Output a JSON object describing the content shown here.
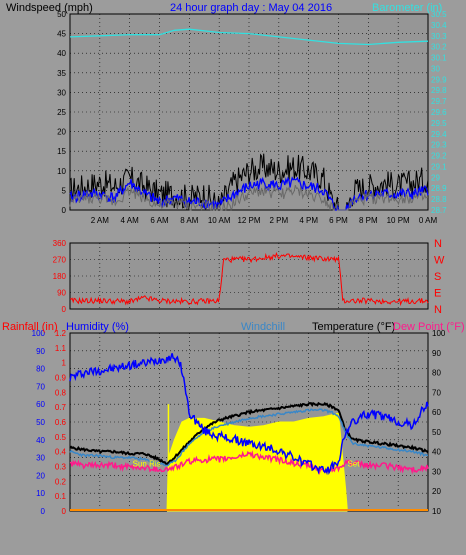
{
  "colors": {
    "background": "#9c9c9c",
    "panel": "#969696",
    "black": "#000000",
    "cyan": "#33e0e0",
    "blue": "#0000ff",
    "gray": "#6a6a6a",
    "red": "#ff0000",
    "pink": "#ff1a8c",
    "steelblue": "#3a87c7",
    "yellow": "#ffff00",
    "orange": "#ff8c00"
  },
  "chart_data": [
    {
      "type": "line",
      "title": "24 hour graph day : May 04 2016",
      "ylabel": "Windspeed (mph)",
      "y2label": "Barometer (in)",
      "x_ticks": [
        "2 AM",
        "4 AM",
        "6 AM",
        "8 AM",
        "10 AM",
        "12 PM",
        "2 PM",
        "4 PM",
        "6 PM",
        "8 PM",
        "10 PM",
        "0 AM"
      ],
      "xlim": [
        0,
        24
      ],
      "ylim": [
        0,
        50
      ],
      "y_ticks": [
        "0",
        "5",
        "10",
        "15",
        "20",
        "25",
        "30",
        "35",
        "40",
        "45",
        "50"
      ],
      "y2lim": [
        28.7,
        30.5
      ],
      "y2_ticks": [
        "28.7",
        "28.8",
        "28.9",
        "29",
        "29.1",
        "29.2",
        "29.3",
        "29.4",
        "29.5",
        "29.6",
        "29.7",
        "29.8",
        "29.9",
        "30",
        "30.1",
        "30.2",
        "30.3",
        "30.4",
        "30.5"
      ],
      "grid": true,
      "series": [
        {
          "key": "gust",
          "color": "#000000",
          "x": [
            0,
            1,
            2,
            3,
            4,
            5,
            6,
            7,
            8,
            9,
            10,
            11,
            12,
            13,
            14,
            15,
            16,
            17,
            17.5,
            18,
            18.5,
            19,
            20,
            21,
            22,
            23,
            24
          ],
          "y": [
            5,
            6,
            7,
            6,
            8,
            6,
            4,
            4,
            3,
            4,
            1,
            7,
            10,
            11,
            10,
            11,
            10,
            8,
            3,
            0,
            0,
            5,
            6,
            7,
            6,
            7,
            8
          ]
        },
        {
          "key": "wind",
          "color": "#0000ff",
          "x": [
            0,
            1,
            2,
            3,
            4,
            5,
            6,
            7,
            8,
            9,
            10,
            11,
            12,
            13,
            14,
            15,
            16,
            17,
            17.5,
            18,
            18.5,
            19,
            20,
            21,
            22,
            23,
            24
          ],
          "y": [
            3,
            4,
            4,
            3,
            7,
            4,
            2,
            3,
            2,
            2,
            1,
            4,
            6,
            7,
            6,
            7,
            6,
            5,
            2,
            0,
            0,
            3,
            4,
            4,
            4,
            4,
            5
          ]
        },
        {
          "key": "avg",
          "color": "#6a6a6a",
          "x": [
            0,
            1,
            2,
            3,
            4,
            5,
            6,
            7,
            8,
            9,
            10,
            11,
            12,
            13,
            14,
            15,
            16,
            17,
            17.5,
            18,
            18.5,
            19,
            20,
            21,
            22,
            23,
            24
          ],
          "y": [
            2,
            3,
            3,
            2,
            5,
            3,
            1,
            2,
            1,
            1,
            0,
            2,
            4,
            5,
            4,
            5,
            4,
            3,
            1,
            0,
            0,
            2,
            3,
            3,
            3,
            3,
            3
          ]
        },
        {
          "key": "barometer",
          "axis": "y2",
          "color": "#33e0e0",
          "x": [
            0,
            2,
            4,
            6,
            7,
            8,
            10,
            12,
            14,
            16,
            18,
            20,
            22,
            24
          ],
          "y": [
            30.29,
            30.3,
            30.31,
            30.31,
            30.35,
            30.36,
            30.33,
            30.32,
            30.29,
            30.26,
            30.23,
            30.22,
            30.24,
            30.25
          ]
        }
      ]
    },
    {
      "type": "scatter",
      "ylabel": "Wind direction",
      "xlim": [
        0,
        24
      ],
      "ylim": [
        0,
        360
      ],
      "y_ticks": [
        "0",
        "90",
        "180",
        "270",
        "360"
      ],
      "compass_labels": [
        "N",
        "W",
        "S",
        "E",
        "N"
      ],
      "grid": true,
      "series": [
        {
          "key": "direction",
          "color": "#ff0000",
          "x": [
            0,
            2,
            4,
            5,
            6,
            8,
            10,
            10.3,
            12,
            14,
            16,
            18,
            18.3,
            20,
            22,
            24
          ],
          "y": [
            45,
            45,
            40,
            60,
            45,
            40,
            45,
            270,
            270,
            290,
            280,
            270,
            45,
            45,
            40,
            45
          ]
        }
      ]
    },
    {
      "type": "line",
      "ylabel": "Rainfall (in)",
      "y2label": "Humidity (%)",
      "y3label": "Temperature (°F)",
      "legend": [
        "Windchill",
        "Temperature (°F)",
        "Dew Point (°F)"
      ],
      "xlim": [
        0,
        24
      ],
      "rain_lim": [
        0,
        1.2
      ],
      "rain_ticks": [
        "0",
        "0.1",
        "0.2",
        "0.3",
        "0.4",
        "0.5",
        "0.6",
        "0.7",
        "0.8",
        "0.9",
        "1",
        "1.1",
        "1.2"
      ],
      "humidity_lim": [
        0,
        100
      ],
      "humidity_ticks": [
        "0",
        "10",
        "20",
        "30",
        "40",
        "50",
        "60",
        "70",
        "80",
        "90",
        "100"
      ],
      "temp_lim": [
        10,
        100
      ],
      "temp_ticks": [
        "10",
        "20",
        "30",
        "40",
        "50",
        "60",
        "70",
        "80",
        "90",
        "100"
      ],
      "sun_rise_label": "Sun Ris",
      "sun_set_label": "Set",
      "grid": true,
      "series": [
        {
          "key": "solar",
          "color": "#ffff00",
          "x": [
            6.5,
            6.6,
            7,
            7.5,
            8,
            9,
            10,
            11,
            12,
            13,
            14,
            15,
            16,
            17,
            18,
            18.5,
            18.6
          ],
          "y": [
            0,
            30,
            40,
            50,
            52,
            52,
            50,
            48,
            47,
            48,
            50,
            50,
            52,
            53,
            55,
            10,
            0
          ]
        },
        {
          "key": "temperature",
          "color": "#000000",
          "axis": "temp",
          "x": [
            0,
            1,
            2,
            3,
            4,
            5,
            6,
            6.5,
            7,
            8,
            9,
            10,
            11,
            12,
            13,
            14,
            15,
            16,
            17,
            17.5,
            18,
            18.5,
            19,
            20,
            21,
            22,
            23,
            24
          ],
          "y": [
            42,
            41,
            40,
            40,
            39,
            39,
            36,
            34,
            37,
            45,
            52,
            56,
            58,
            60,
            61,
            62,
            63,
            64,
            64,
            63,
            61,
            50,
            46,
            45,
            44,
            43,
            42,
            40
          ]
        },
        {
          "key": "windchill",
          "color": "#3a87c7",
          "axis": "temp",
          "x": [
            0,
            1,
            2,
            3,
            4,
            5,
            6,
            6.5,
            7,
            8,
            9,
            10,
            11,
            12,
            13,
            14,
            15,
            16,
            17,
            17.5,
            18,
            18.5,
            19,
            20,
            21,
            22,
            23,
            24
          ],
          "y": [
            40,
            38,
            38,
            37,
            37,
            36,
            34,
            33,
            35,
            44,
            50,
            53,
            55,
            57,
            58,
            59,
            60,
            61,
            61,
            60,
            58,
            49,
            44,
            43,
            42,
            41,
            40,
            38
          ]
        },
        {
          "key": "dewpoint",
          "color": "#ff1a8c",
          "axis": "temp",
          "x": [
            0,
            1,
            2,
            3,
            4,
            5,
            6,
            6.5,
            7,
            8,
            9,
            10,
            11,
            12,
            13,
            14,
            15,
            16,
            17,
            18,
            18.5,
            19,
            20,
            21,
            22,
            23,
            24
          ],
          "y": [
            34,
            33,
            33,
            33,
            32,
            32,
            31,
            31,
            32,
            35,
            36,
            36,
            37,
            39,
            37,
            36,
            34,
            33,
            30,
            32,
            35,
            34,
            33,
            33,
            32,
            31,
            32
          ]
        },
        {
          "key": "humidity",
          "color": "#0000ff",
          "axis": "humidity",
          "x": [
            0,
            1,
            2,
            3,
            4,
            5,
            6,
            7,
            7.5,
            8,
            9,
            10,
            11,
            12,
            13,
            14,
            15,
            16,
            17,
            17.5,
            18,
            18.5,
            19,
            20,
            21,
            22,
            23,
            23.5,
            24
          ],
          "y": [
            75,
            78,
            79,
            80,
            82,
            83,
            85,
            87,
            80,
            55,
            45,
            42,
            40,
            38,
            36,
            34,
            30,
            26,
            23,
            24,
            28,
            45,
            50,
            55,
            53,
            50,
            48,
            55,
            60
          ]
        },
        {
          "key": "rainfall",
          "color": "#ff8c00",
          "axis": "rain",
          "x": [
            0,
            24
          ],
          "y": [
            0,
            0
          ]
        }
      ]
    }
  ],
  "texts": {
    "windspeed": "Windspeed (mph)",
    "title": "24 hour graph day : May 04 2016",
    "barometer": "Barometer (in)",
    "rainfall": "Rainfall (in)",
    "humidity": "Humidity (%)",
    "windchill": "Windchill",
    "temperature": "Temperature (°F)",
    "dewpoint": "Dew Point (°F)"
  }
}
